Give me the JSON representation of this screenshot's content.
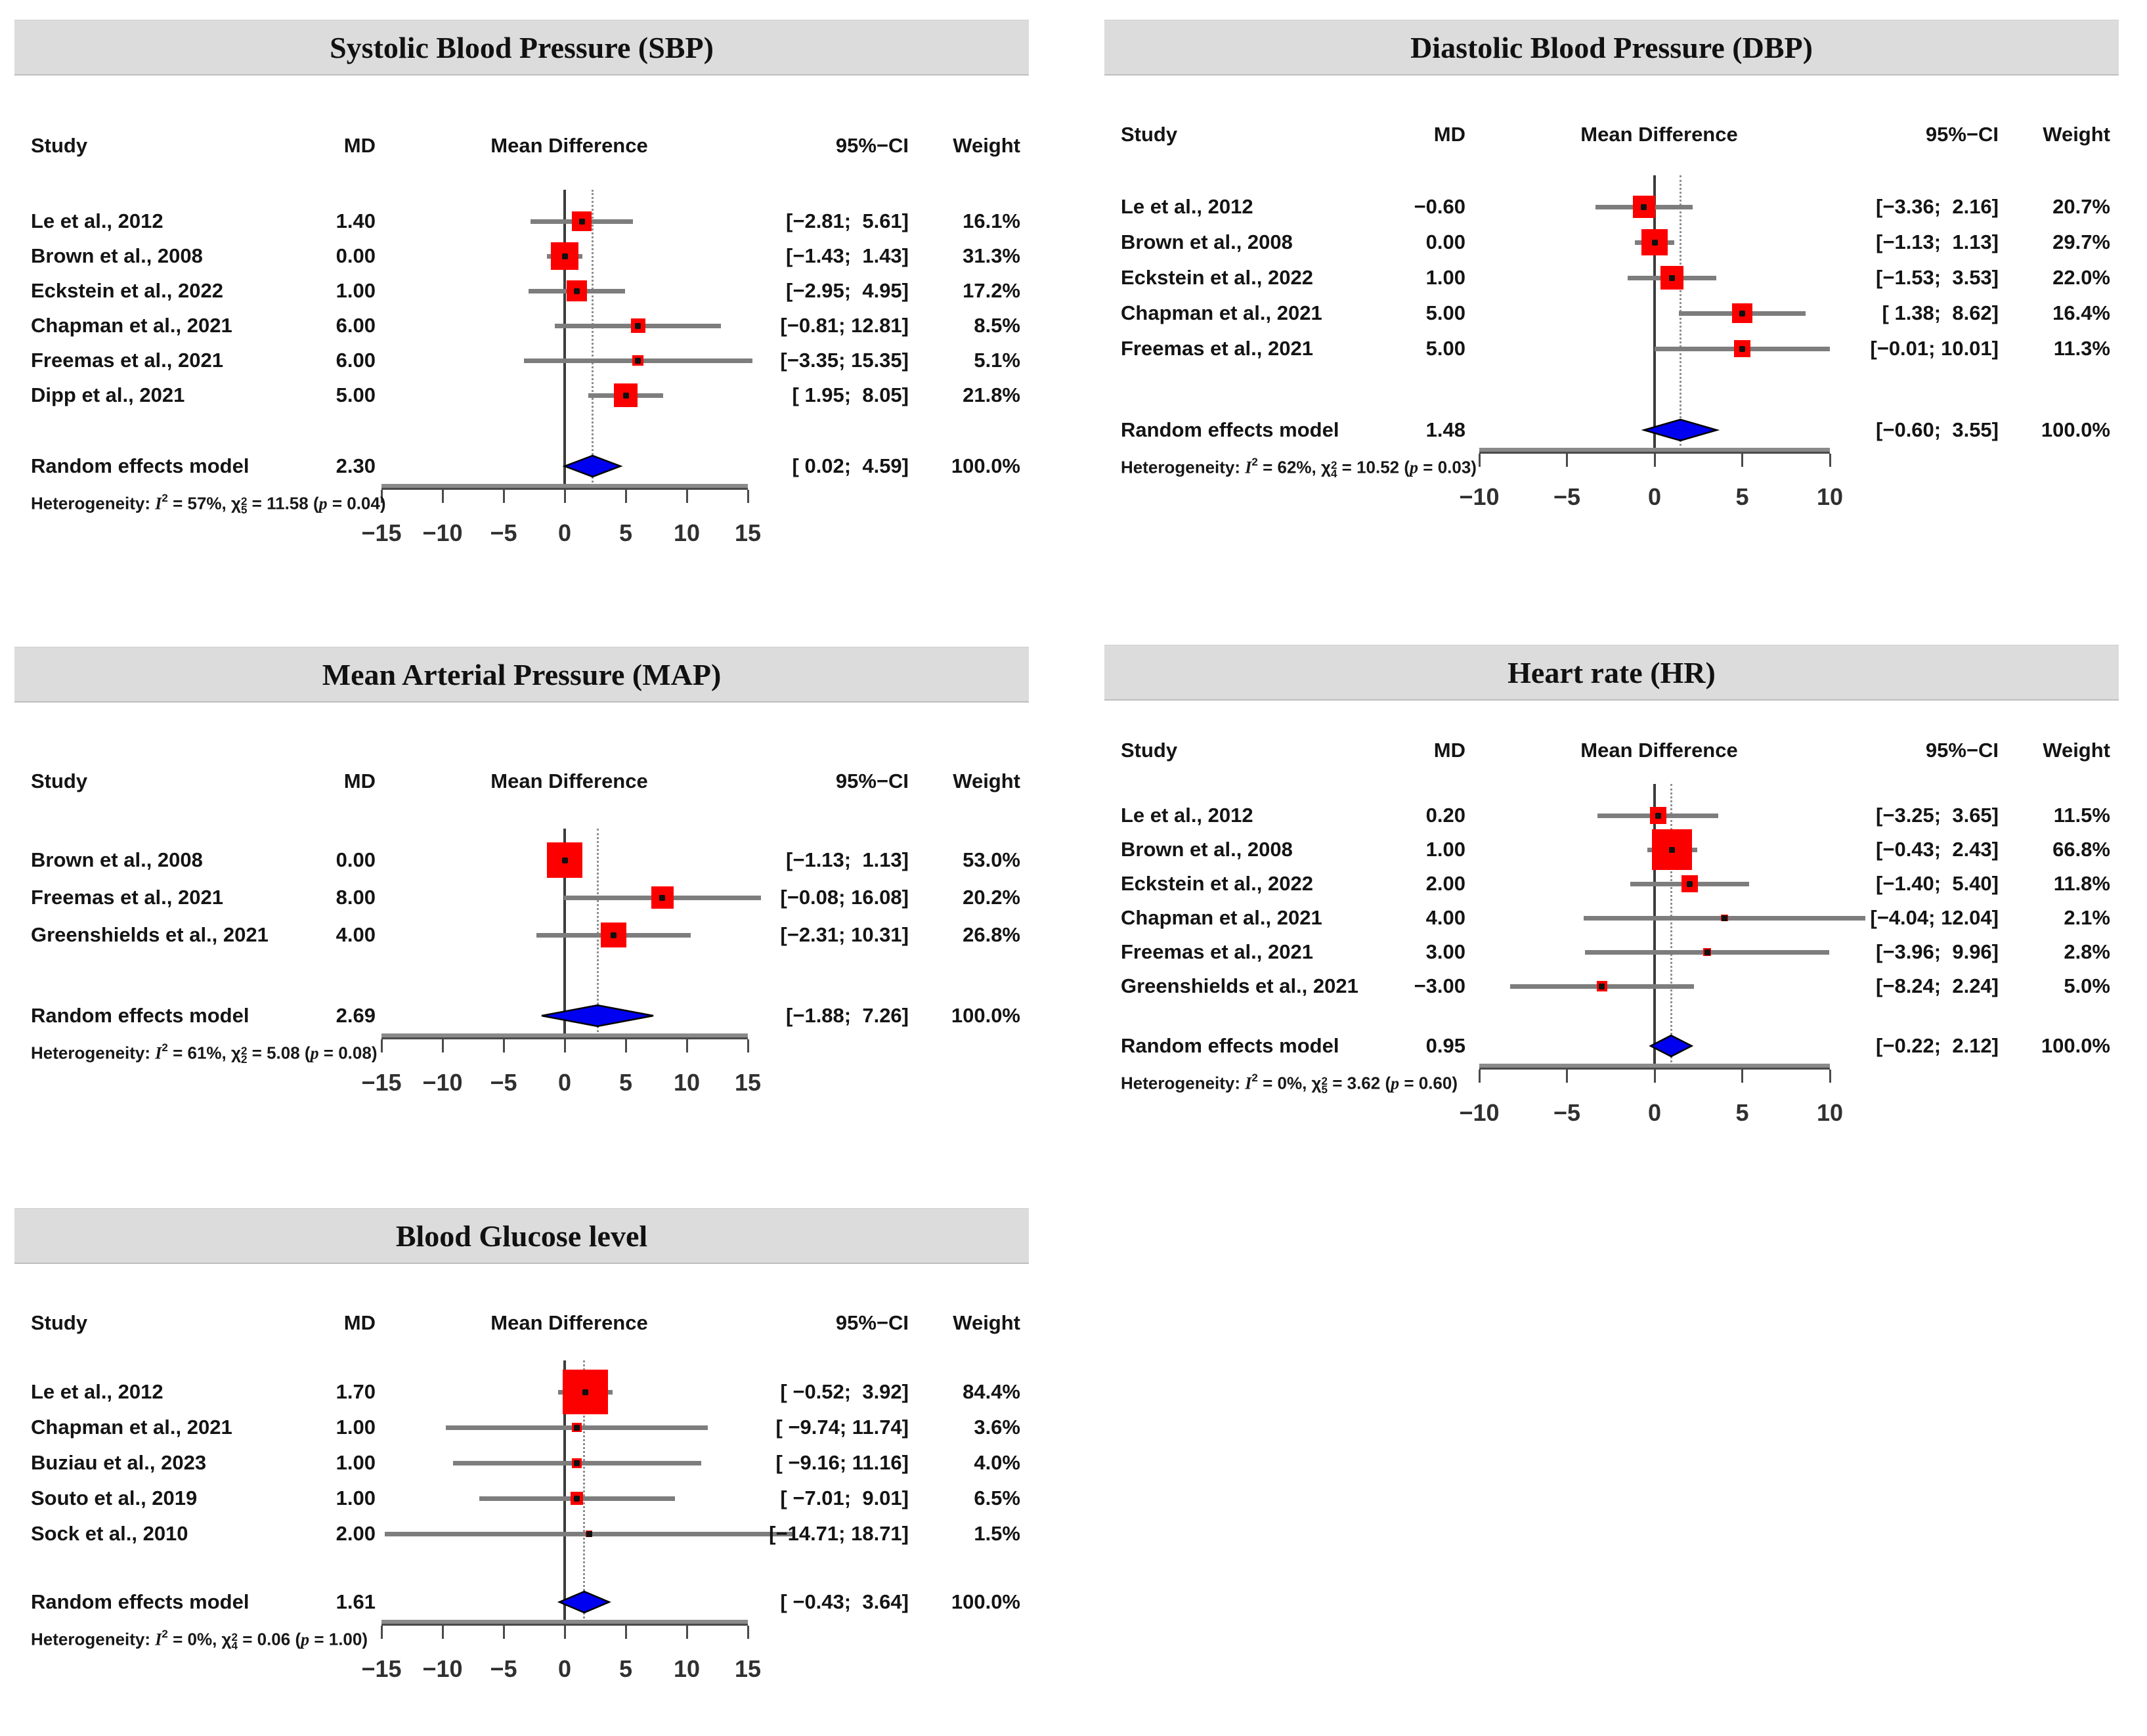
{
  "figure": {
    "colors": {
      "titlebar_bg": "#dcdcdc",
      "square_red": "#fc0000",
      "diamond_blue": "#0000f0",
      "ci_gray": "#7d7d7d",
      "zero_line": "#3c3c3c",
      "axis_gray": "#8a8a8a"
    },
    "columns": {
      "study": "Study",
      "md": "MD",
      "plot": "Mean Difference",
      "ci": "95%−CI",
      "weight": "Weight"
    },
    "het": {
      "prefix": "Heterogeneity: ",
      "i_sym": "I",
      "sq": "2",
      "eq": " = ",
      "sep": ", ",
      "chi": "χ",
      "p_sym": "p",
      "p_open": " (",
      "p_close": ")"
    }
  },
  "chart_data": [
    {
      "type": "forest",
      "title": "Systolic Blood Pressure (SBP)",
      "xlabel": "Mean Difference",
      "axis": {
        "min": -15,
        "max": 15,
        "ticks": [
          -15,
          -10,
          -5,
          0,
          5,
          10,
          15
        ],
        "tick_labels": [
          "−15",
          "−10",
          "−5",
          "0",
          "5",
          "10",
          "15"
        ]
      },
      "studies": [
        {
          "study": "Le et al., 2012",
          "md": 1.4,
          "md_label": "1.40",
          "ci_lo": -2.81,
          "ci_hi": 5.61,
          "ci_label": "[−2.81;  5.61]",
          "weight_pct": 16.1,
          "weight_label": "16.1%"
        },
        {
          "study": "Brown et al., 2008",
          "md": 0.0,
          "md_label": "0.00",
          "ci_lo": -1.43,
          "ci_hi": 1.43,
          "ci_label": "[−1.43;  1.43]",
          "weight_pct": 31.3,
          "weight_label": "31.3%"
        },
        {
          "study": "Eckstein et al., 2022",
          "md": 1.0,
          "md_label": "1.00",
          "ci_lo": -2.95,
          "ci_hi": 4.95,
          "ci_label": "[−2.95;  4.95]",
          "weight_pct": 17.2,
          "weight_label": "17.2%"
        },
        {
          "study": "Chapman et al., 2021",
          "md": 6.0,
          "md_label": "6.00",
          "ci_lo": -0.81,
          "ci_hi": 12.81,
          "ci_label": "[−0.81; 12.81]",
          "weight_pct": 8.5,
          "weight_label": "8.5%"
        },
        {
          "study": "Freemas et al., 2021",
          "md": 6.0,
          "md_label": "6.00",
          "ci_lo": -3.35,
          "ci_hi": 15.35,
          "ci_label": "[−3.35; 15.35]",
          "weight_pct": 5.1,
          "weight_label": "5.1%"
        },
        {
          "study": "Dipp et al., 2021",
          "md": 5.0,
          "md_label": "5.00",
          "ci_lo": 1.95,
          "ci_hi": 8.05,
          "ci_label": "[ 1.95;  8.05]",
          "weight_pct": 21.8,
          "weight_label": "21.8%"
        }
      ],
      "pooled": {
        "label": "Random effects model",
        "md": 2.3,
        "md_label": "2.30",
        "ci_lo": 0.02,
        "ci_hi": 4.59,
        "ci_label": "[ 0.02;  4.59]",
        "weight_label": "100.0%"
      },
      "heterogeneity": {
        "i2": "57%",
        "df": "5",
        "chi2": "11.58",
        "p": "0.04"
      }
    },
    {
      "type": "forest",
      "title": "Diastolic Blood Pressure (DBP)",
      "xlabel": "Mean Difference",
      "axis": {
        "min": -10,
        "max": 10,
        "ticks": [
          -10,
          -5,
          0,
          5,
          10
        ],
        "tick_labels": [
          "−10",
          "−5",
          "0",
          "5",
          "10"
        ]
      },
      "studies": [
        {
          "study": "Le et al., 2012",
          "md": -0.6,
          "md_label": "−0.60",
          "ci_lo": -3.36,
          "ci_hi": 2.16,
          "ci_label": "[−3.36;  2.16]",
          "weight_pct": 20.7,
          "weight_label": "20.7%"
        },
        {
          "study": "Brown et al., 2008",
          "md": 0.0,
          "md_label": "0.00",
          "ci_lo": -1.13,
          "ci_hi": 1.13,
          "ci_label": "[−1.13;  1.13]",
          "weight_pct": 29.7,
          "weight_label": "29.7%"
        },
        {
          "study": "Eckstein et al., 2022",
          "md": 1.0,
          "md_label": "1.00",
          "ci_lo": -1.53,
          "ci_hi": 3.53,
          "ci_label": "[−1.53;  3.53]",
          "weight_pct": 22.0,
          "weight_label": "22.0%"
        },
        {
          "study": "Chapman et al., 2021",
          "md": 5.0,
          "md_label": "5.00",
          "ci_lo": 1.38,
          "ci_hi": 8.62,
          "ci_label": "[ 1.38;  8.62]",
          "weight_pct": 16.4,
          "weight_label": "16.4%"
        },
        {
          "study": "Freemas et al., 2021",
          "md": 5.0,
          "md_label": "5.00",
          "ci_lo": -0.01,
          "ci_hi": 10.01,
          "ci_label": "[−0.01; 10.01]",
          "weight_pct": 11.3,
          "weight_label": "11.3%"
        }
      ],
      "pooled": {
        "label": "Random effects model",
        "md": 1.48,
        "md_label": "1.48",
        "ci_lo": -0.6,
        "ci_hi": 3.55,
        "ci_label": "[−0.60;  3.55]",
        "weight_label": "100.0%"
      },
      "heterogeneity": {
        "i2": "62%",
        "df": "4",
        "chi2": "10.52",
        "p": "0.03"
      }
    },
    {
      "type": "forest",
      "title": "Mean Arterial Pressure (MAP)",
      "xlabel": "Mean Difference",
      "axis": {
        "min": -15,
        "max": 15,
        "ticks": [
          -15,
          -10,
          -5,
          0,
          5,
          10,
          15
        ],
        "tick_labels": [
          "−15",
          "−10",
          "−5",
          "0",
          "5",
          "10",
          "15"
        ]
      },
      "studies": [
        {
          "study": "Brown et al., 2008",
          "md": 0.0,
          "md_label": "0.00",
          "ci_lo": -1.13,
          "ci_hi": 1.13,
          "ci_label": "[−1.13;  1.13]",
          "weight_pct": 53.0,
          "weight_label": "53.0%"
        },
        {
          "study": "Freemas et al., 2021",
          "md": 8.0,
          "md_label": "8.00",
          "ci_lo": -0.08,
          "ci_hi": 16.08,
          "ci_label": "[−0.08; 16.08]",
          "weight_pct": 20.2,
          "weight_label": "20.2%"
        },
        {
          "study": "Greenshields et al., 2021",
          "md": 4.0,
          "md_label": "4.00",
          "ci_lo": -2.31,
          "ci_hi": 10.31,
          "ci_label": "[−2.31; 10.31]",
          "weight_pct": 26.8,
          "weight_label": "26.8%"
        }
      ],
      "pooled": {
        "label": "Random effects model",
        "md": 2.69,
        "md_label": "2.69",
        "ci_lo": -1.88,
        "ci_hi": 7.26,
        "ci_label": "[−1.88;  7.26]",
        "weight_label": "100.0%"
      },
      "heterogeneity": {
        "i2": "61%",
        "df": "2",
        "chi2": "5.08",
        "p": "0.08"
      }
    },
    {
      "type": "forest",
      "title": "Heart rate (HR)",
      "xlabel": "Mean Difference",
      "axis": {
        "min": -10,
        "max": 10,
        "ticks": [
          -10,
          -5,
          0,
          5,
          10
        ],
        "tick_labels": [
          "−10",
          "−5",
          "0",
          "5",
          "10"
        ]
      },
      "studies": [
        {
          "study": "Le et al., 2012",
          "md": 0.2,
          "md_label": "0.20",
          "ci_lo": -3.25,
          "ci_hi": 3.65,
          "ci_label": "[−3.25;  3.65]",
          "weight_pct": 11.5,
          "weight_label": "11.5%"
        },
        {
          "study": "Brown et al., 2008",
          "md": 1.0,
          "md_label": "1.00",
          "ci_lo": -0.43,
          "ci_hi": 2.43,
          "ci_label": "[−0.43;  2.43]",
          "weight_pct": 66.8,
          "weight_label": "66.8%"
        },
        {
          "study": "Eckstein et al., 2022",
          "md": 2.0,
          "md_label": "2.00",
          "ci_lo": -1.4,
          "ci_hi": 5.4,
          "ci_label": "[−1.40;  5.40]",
          "weight_pct": 11.8,
          "weight_label": "11.8%"
        },
        {
          "study": "Chapman et al., 2021",
          "md": 4.0,
          "md_label": "4.00",
          "ci_lo": -4.04,
          "ci_hi": 12.04,
          "ci_label": "[−4.04; 12.04]",
          "weight_pct": 2.1,
          "weight_label": "2.1%"
        },
        {
          "study": "Freemas et al., 2021",
          "md": 3.0,
          "md_label": "3.00",
          "ci_lo": -3.96,
          "ci_hi": 9.96,
          "ci_label": "[−3.96;  9.96]",
          "weight_pct": 2.8,
          "weight_label": "2.8%"
        },
        {
          "study": "Greenshields et al., 2021",
          "md": -3.0,
          "md_label": "−3.00",
          "ci_lo": -8.24,
          "ci_hi": 2.24,
          "ci_label": "[−8.24;  2.24]",
          "weight_pct": 5.0,
          "weight_label": "5.0%"
        }
      ],
      "pooled": {
        "label": "Random effects model",
        "md": 0.95,
        "md_label": "0.95",
        "ci_lo": -0.22,
        "ci_hi": 2.12,
        "ci_label": "[−0.22;  2.12]",
        "weight_label": "100.0%"
      },
      "heterogeneity": {
        "i2": "0%",
        "df": "5",
        "chi2": "3.62",
        "p": "0.60"
      }
    },
    {
      "type": "forest",
      "title": "Blood Glucose level",
      "xlabel": "Mean Difference",
      "axis": {
        "min": -15,
        "max": 15,
        "ticks": [
          -15,
          -10,
          -5,
          0,
          5,
          10,
          15
        ],
        "tick_labels": [
          "−15",
          "−10",
          "−5",
          "0",
          "5",
          "10",
          "15"
        ]
      },
      "studies": [
        {
          "study": "Le et al., 2012",
          "md": 1.7,
          "md_label": "1.70",
          "ci_lo": -0.52,
          "ci_hi": 3.92,
          "ci_label": "[ −0.52;  3.92]",
          "weight_pct": 84.4,
          "weight_label": "84.4%"
        },
        {
          "study": "Chapman et al., 2021",
          "md": 1.0,
          "md_label": "1.00",
          "ci_lo": -9.74,
          "ci_hi": 11.74,
          "ci_label": "[ −9.74; 11.74]",
          "weight_pct": 3.6,
          "weight_label": "3.6%"
        },
        {
          "study": "Buziau et al., 2023",
          "md": 1.0,
          "md_label": "1.00",
          "ci_lo": -9.16,
          "ci_hi": 11.16,
          "ci_label": "[ −9.16; 11.16]",
          "weight_pct": 4.0,
          "weight_label": "4.0%"
        },
        {
          "study": "Souto et al., 2019",
          "md": 1.0,
          "md_label": "1.00",
          "ci_lo": -7.01,
          "ci_hi": 9.01,
          "ci_label": "[ −7.01;  9.01]",
          "weight_pct": 6.5,
          "weight_label": "6.5%"
        },
        {
          "study": "Sock et al., 2010",
          "md": 2.0,
          "md_label": "2.00",
          "ci_lo": -14.71,
          "ci_hi": 18.71,
          "ci_label": "[−14.71; 18.71]",
          "weight_pct": 1.5,
          "weight_label": "1.5%"
        }
      ],
      "pooled": {
        "label": "Random effects model",
        "md": 1.61,
        "md_label": "1.61",
        "ci_lo": -0.43,
        "ci_hi": 3.64,
        "ci_label": "[ −0.43;  3.64]",
        "weight_label": "100.0%"
      },
      "heterogeneity": {
        "i2": "0%",
        "df": "4",
        "chi2": "0.06",
        "p": "1.00"
      }
    }
  ]
}
